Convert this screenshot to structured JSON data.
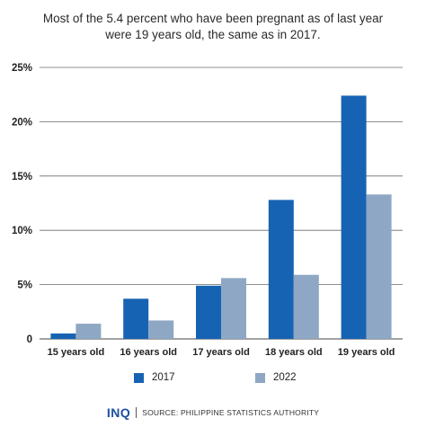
{
  "title_lines": [
    "Most of the 5.4 percent who have been pregnant as of last year",
    "were 19 years old, the same as in 2017."
  ],
  "colors": {
    "s2017": "#1763b3",
    "s2022": "#8ea7c4",
    "grid": "#6b6b6b"
  },
  "chart_data": {
    "type": "bar",
    "title": "Most of the 5.4 percent who have been pregnant as of last year were 19 years old, the same as in 2017.",
    "xlabel": "",
    "ylabel": "",
    "categories": [
      "15 years old",
      "16 years old",
      "17 years old",
      "18 years old",
      "19 years old"
    ],
    "series": [
      {
        "name": "2017",
        "values": [
          0.5,
          3.7,
          4.9,
          12.8,
          22.4
        ]
      },
      {
        "name": "2022",
        "values": [
          1.4,
          1.7,
          5.6,
          5.9,
          13.3
        ]
      }
    ],
    "ylim": [
      0,
      25
    ],
    "yticks": [
      0,
      5,
      10,
      15,
      20,
      25
    ],
    "ytick_labels": [
      "0",
      "5%",
      "10%",
      "15%",
      "20%",
      "25%"
    ],
    "grid": true,
    "legend": "bottom"
  },
  "legend": {
    "item_2017": "2017",
    "item_2022": "2022"
  },
  "footer": {
    "logo": "INQ",
    "source": "SOURCE: PHILIPPINE STATISTICS AUTHORITY"
  }
}
